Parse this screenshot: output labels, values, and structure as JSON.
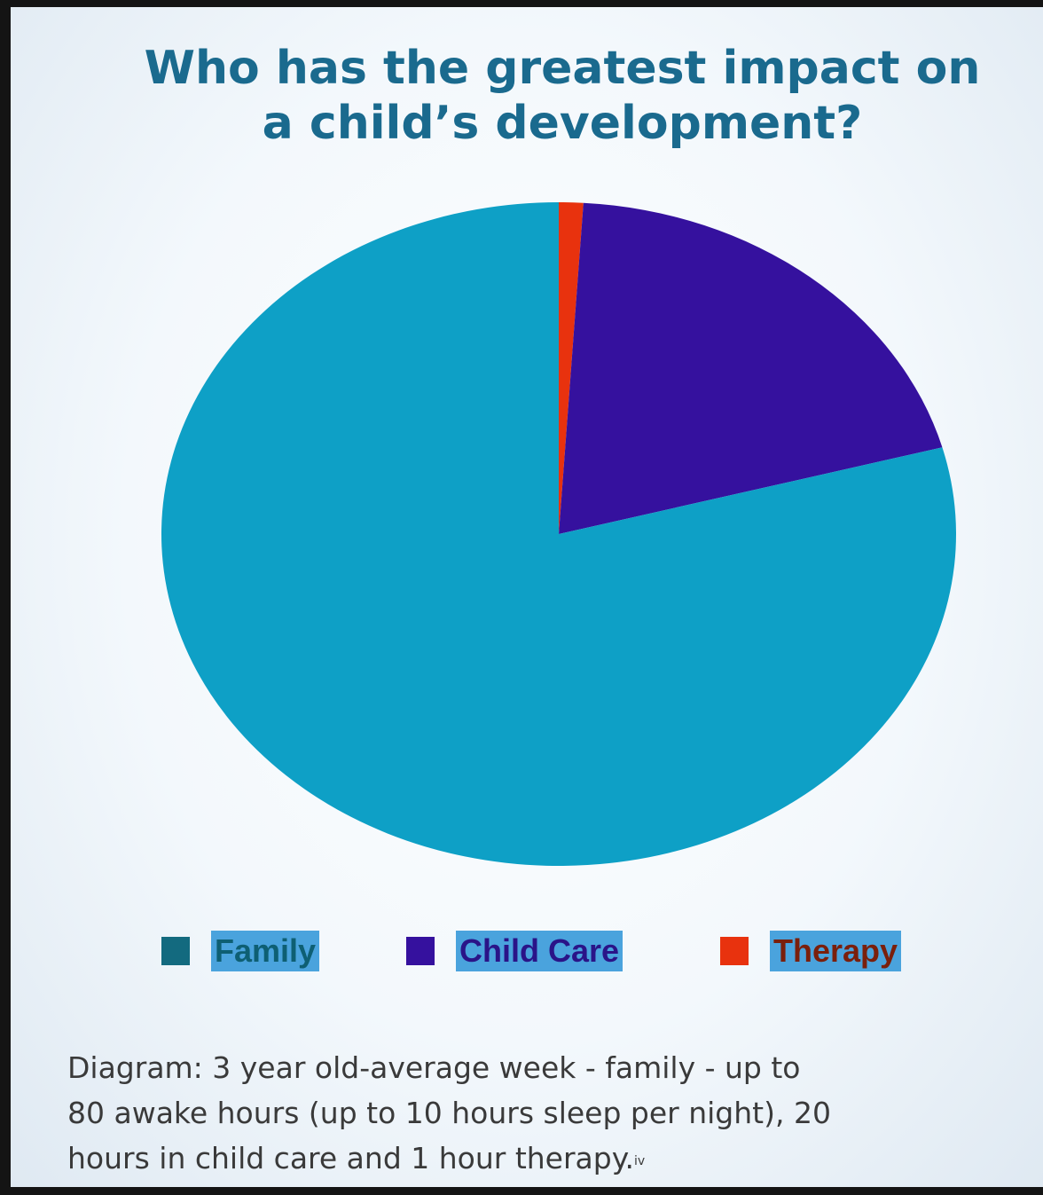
{
  "chart_data": {
    "type": "pie",
    "title": [
      "Who has the greatest impact on",
      "a child’s development?"
    ],
    "categories": [
      "Family",
      "Child Care",
      "Therapy"
    ],
    "values": [
      80,
      20,
      1
    ],
    "colors": [
      "#0ea0c6",
      "#35119e",
      "#e8320e"
    ],
    "legend_colors": [
      "#136a7f",
      "#35119e",
      "#e8320e"
    ],
    "legend_position": "bottom"
  },
  "caption": {
    "lines": [
      "Diagram: 3 year old-average week - family - up to",
      "80 awake hours (up to 10 hours sleep per night), 20",
      "hours in child care and 1 hour therapy."
    ],
    "footnote": "iv"
  }
}
